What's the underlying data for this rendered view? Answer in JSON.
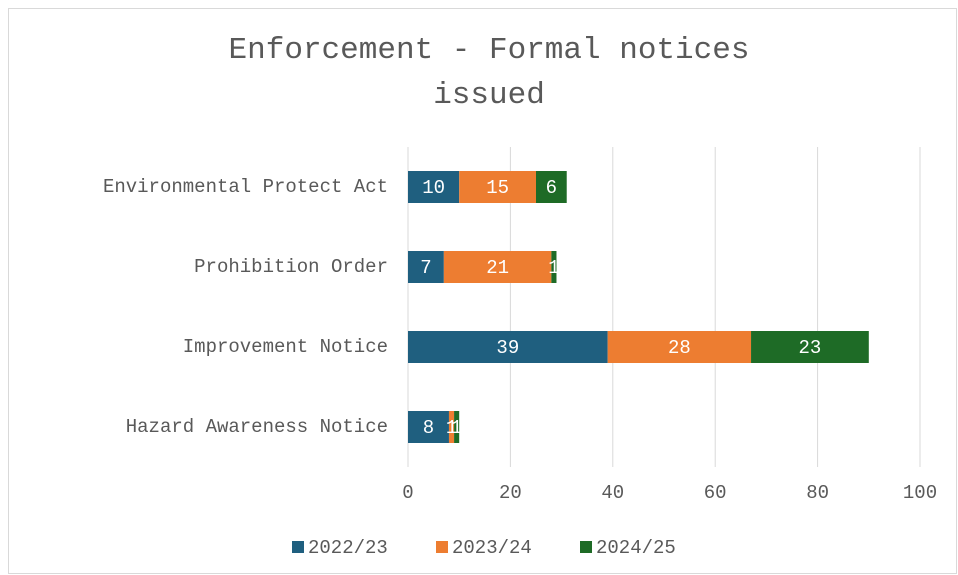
{
  "chart_data": {
    "type": "stacked-horizontal-bar",
    "title": "Enforcement - Formal notices issued",
    "categories": [
      "Environmental Protect Act",
      "Prohibition Order",
      "Improvement Notice",
      "Hazard Awareness Notice"
    ],
    "series": [
      {
        "name": "2022/23",
        "color": "#1f5f7f",
        "values": [
          10,
          7,
          39,
          8
        ]
      },
      {
        "name": "2023/24",
        "color": "#ed7d31",
        "values": [
          15,
          21,
          28,
          1
        ]
      },
      {
        "name": "2024/25",
        "color": "#1e6b26",
        "values": [
          6,
          1,
          23,
          1
        ]
      }
    ],
    "xlim": [
      0,
      100
    ],
    "xticks": [
      0,
      20,
      40,
      60,
      80,
      100
    ],
    "grid": true,
    "legend": "bottom"
  }
}
